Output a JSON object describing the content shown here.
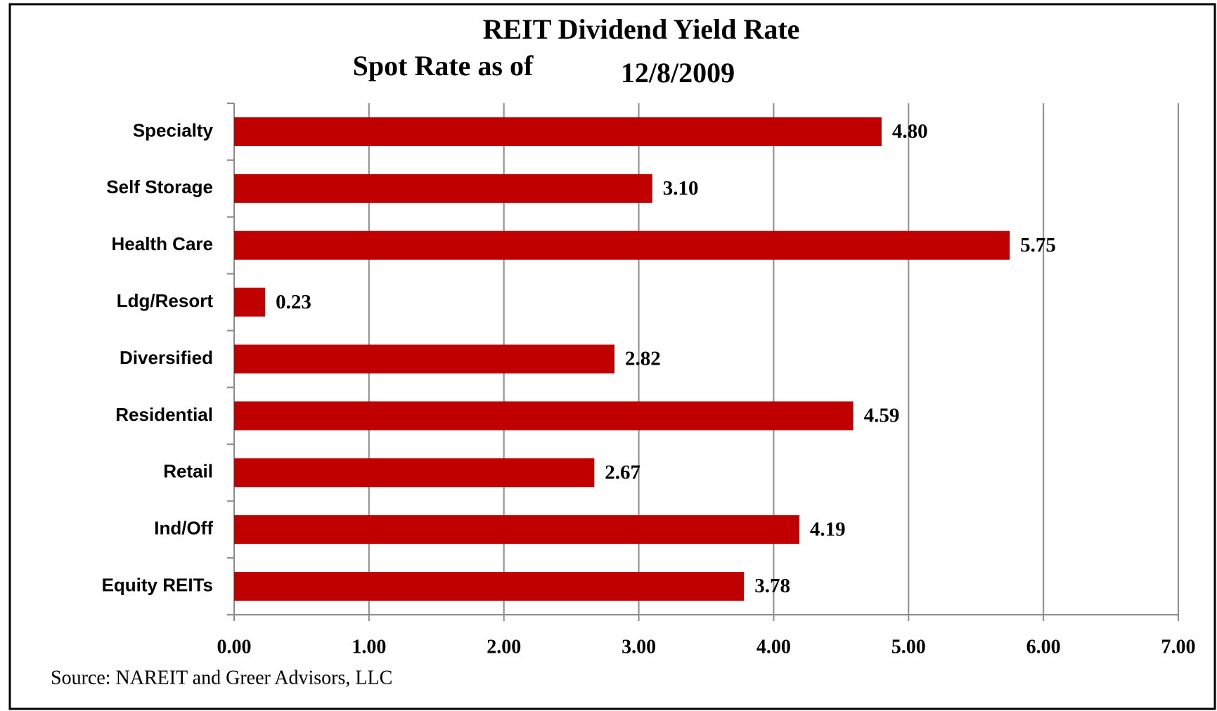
{
  "chart_data": {
    "type": "bar",
    "orientation": "horizontal",
    "title": "REIT Dividend Yield Rate",
    "subtitle": "Spot Rate as of",
    "date": "12/8/2009",
    "source": "Source: NAREIT and Greer Advisors, LLC",
    "categories": [
      "Specialty",
      "Self Storage",
      "Health Care",
      "Ldg/Resort",
      "Diversified",
      "Residential",
      "Retail",
      "Ind/Off",
      "Equity REITs"
    ],
    "values": [
      4.8,
      3.1,
      5.75,
      0.23,
      2.82,
      4.59,
      2.67,
      4.19,
      3.78
    ],
    "value_labels": [
      "4.80",
      "3.10",
      "5.75",
      "0.23",
      "2.82",
      "4.59",
      "2.67",
      "4.19",
      "3.78"
    ],
    "color": "#c00000",
    "xlim": [
      0,
      7
    ],
    "xticks": [
      {
        "value": 0,
        "label": "0.00"
      },
      {
        "value": 1,
        "label": "1.00"
      },
      {
        "value": 2,
        "label": "2.00"
      },
      {
        "value": 3,
        "label": "3.00"
      },
      {
        "value": 4,
        "label": "4.00"
      },
      {
        "value": 5,
        "label": "5.00"
      },
      {
        "value": 6,
        "label": "6.00"
      },
      {
        "value": 7,
        "label": "7.00"
      }
    ],
    "grid": true
  }
}
